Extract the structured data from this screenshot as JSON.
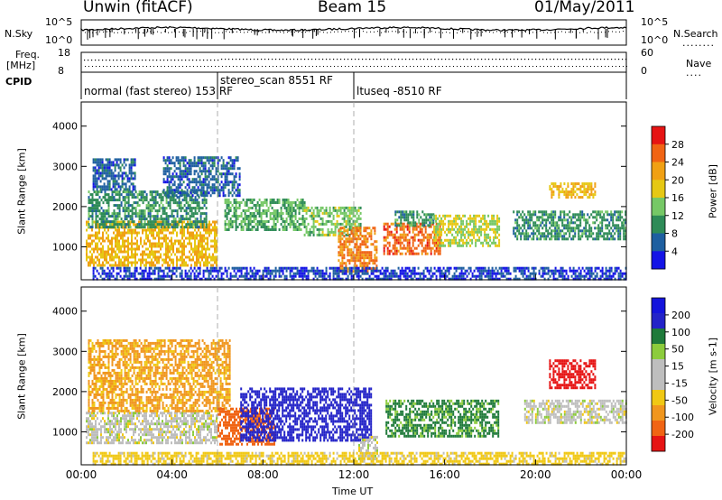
{
  "header": {
    "station": "Unwin (fitACF)",
    "beam": "Beam 15",
    "date": "01/May/2011"
  },
  "noise_panel": {
    "left_label": "N.Sky",
    "right_label": "N.Search",
    "left_ticks": [
      "10^5",
      "10^0"
    ],
    "right_ticks": [
      "10^5",
      "10^0"
    ]
  },
  "freq_panel": {
    "left_label_1": "Freq.",
    "left_label_2": "[MHz]",
    "left_ticks": [
      "18",
      "8"
    ],
    "right_label": "Nave",
    "right_ticks": [
      "60",
      "0"
    ]
  },
  "cpid": {
    "label": "CPID",
    "segments": [
      {
        "text": "normal (fast stereo) 153 RF",
        "start_h": 0.0,
        "end_h": 6.0
      },
      {
        "text": "stereo_scan 8551 RF",
        "start_h": 6.0,
        "end_h": 12.0
      },
      {
        "text": "ltuseq -8510 RF",
        "start_h": 12.0,
        "end_h": 24.0
      }
    ]
  },
  "x_axis": {
    "title": "Time UT",
    "ticks": [
      "00:00",
      "04:00",
      "08:00",
      "12:00",
      "16:00",
      "20:00",
      "00:00"
    ]
  },
  "colors": {
    "power_scale": [
      "#1414e6",
      "#1e5fa0",
      "#2e8b57",
      "#76c866",
      "#e6c814",
      "#f0a014",
      "#f06414",
      "#e61414"
    ],
    "velocity_scale": [
      "#1414dc",
      "#2323c8",
      "#1f7a3a",
      "#8ccc3c",
      "#bebebe",
      "#bebebe",
      "#f0c814",
      "#f0961e",
      "#f06414",
      "#e61414"
    ]
  },
  "chart_data": [
    {
      "type": "heatmap",
      "title": "Power",
      "xlabel": "Time UT",
      "ylabel": "Slant Range [km]",
      "xlim": [
        0,
        24
      ],
      "ylim": [
        180,
        4600
      ],
      "y_ticks": [
        1000,
        2000,
        3000,
        4000
      ],
      "colorbar": {
        "label": "Power [dB]",
        "range": [
          0,
          32
        ],
        "ticks": [
          "4",
          "8",
          "12",
          "16",
          "20",
          "24",
          "28"
        ]
      },
      "regions": [
        {
          "t0": 0.2,
          "t1": 6.0,
          "r0": 550,
          "r1": 1650,
          "level": 20
        },
        {
          "t0": 0.3,
          "t1": 5.5,
          "r0": 1500,
          "r1": 2400,
          "level": 10
        },
        {
          "t0": 0.5,
          "t1": 2.4,
          "r0": 2400,
          "r1": 3200,
          "level": 6
        },
        {
          "t0": 3.6,
          "t1": 7.0,
          "r0": 2300,
          "r1": 3250,
          "level": 6
        },
        {
          "t0": 6.3,
          "t1": 9.8,
          "r0": 1400,
          "r1": 2200,
          "level": 12
        },
        {
          "t0": 9.8,
          "t1": 12.3,
          "r0": 1300,
          "r1": 2000,
          "level": 14
        },
        {
          "t0": 11.3,
          "t1": 13.0,
          "r0": 400,
          "r1": 1500,
          "level": 24
        },
        {
          "t0": 13.3,
          "t1": 15.8,
          "r0": 800,
          "r1": 1600,
          "level": 26
        },
        {
          "t0": 13.8,
          "t1": 15.5,
          "r0": 1500,
          "r1": 1900,
          "level": 10
        },
        {
          "t0": 15.5,
          "t1": 18.4,
          "r0": 1000,
          "r1": 1800,
          "level": 16
        },
        {
          "t0": 19.0,
          "t1": 24.0,
          "r0": 1200,
          "r1": 1900,
          "level": 10
        },
        {
          "t0": 20.6,
          "t1": 22.6,
          "r0": 2200,
          "r1": 2600,
          "level": 20
        },
        {
          "t0": 0.5,
          "t1": 24.0,
          "r0": 180,
          "r1": 500,
          "level": 4
        }
      ]
    },
    {
      "type": "heatmap",
      "title": "Velocity",
      "xlabel": "Time UT",
      "ylabel": "Slant Range [km]",
      "xlim": [
        0,
        24
      ],
      "ylim": [
        180,
        4600
      ],
      "y_ticks": [
        1000,
        2000,
        3000,
        4000
      ],
      "colorbar": {
        "label": "Velocity [m s-1]",
        "range": [
          -250,
          250
        ],
        "ticks": [
          "200",
          "100",
          "50",
          "15",
          "-15",
          "-50",
          "-100",
          "-200"
        ]
      },
      "regions": [
        {
          "t0": 0.2,
          "t1": 6.0,
          "r0": 700,
          "r1": 1500,
          "level": 0
        },
        {
          "t0": 0.3,
          "t1": 6.5,
          "r0": 1500,
          "r1": 3300,
          "level": -60
        },
        {
          "t0": 6.0,
          "t1": 8.5,
          "r0": 700,
          "r1": 1600,
          "level": -130
        },
        {
          "t0": 7.0,
          "t1": 12.8,
          "r0": 800,
          "r1": 2100,
          "level": 180
        },
        {
          "t0": 12.2,
          "t1": 13.0,
          "r0": 300,
          "r1": 900,
          "level": 0
        },
        {
          "t0": 13.4,
          "t1": 18.4,
          "r0": 900,
          "r1": 1800,
          "level": 60
        },
        {
          "t0": 19.5,
          "t1": 24.0,
          "r0": 1200,
          "r1": 1800,
          "level": 0
        },
        {
          "t0": 20.6,
          "t1": 22.6,
          "r0": 2100,
          "r1": 2800,
          "level": -220
        },
        {
          "t0": 0.5,
          "t1": 24.0,
          "r0": 180,
          "r1": 500,
          "level": -30
        }
      ]
    }
  ]
}
